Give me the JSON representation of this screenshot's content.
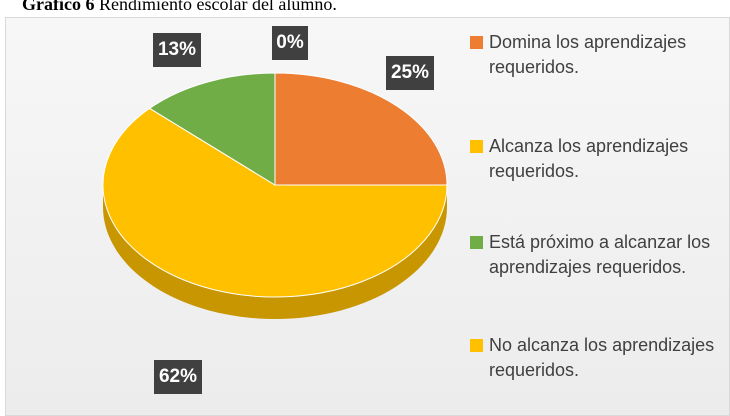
{
  "chart_data": {
    "type": "pie",
    "title_label": "Gráfico 6",
    "title": "Rendimiento escolar del alumno.",
    "categories": [
      "Domina los aprendizajes requeridos.",
      "Alcanza los aprendizajes requeridos.",
      "Está próximo a alcanzar los aprendizajes requeridos.",
      "No alcanza los aprendizajes requeridos."
    ],
    "values": [
      25,
      62,
      13,
      0
    ],
    "value_labels": [
      "25%",
      "62%",
      "13%",
      "0%"
    ],
    "colors": [
      "#ED7D31",
      "#FFC000",
      "#70AD47",
      "#FFC000"
    ],
    "legend": "right"
  }
}
